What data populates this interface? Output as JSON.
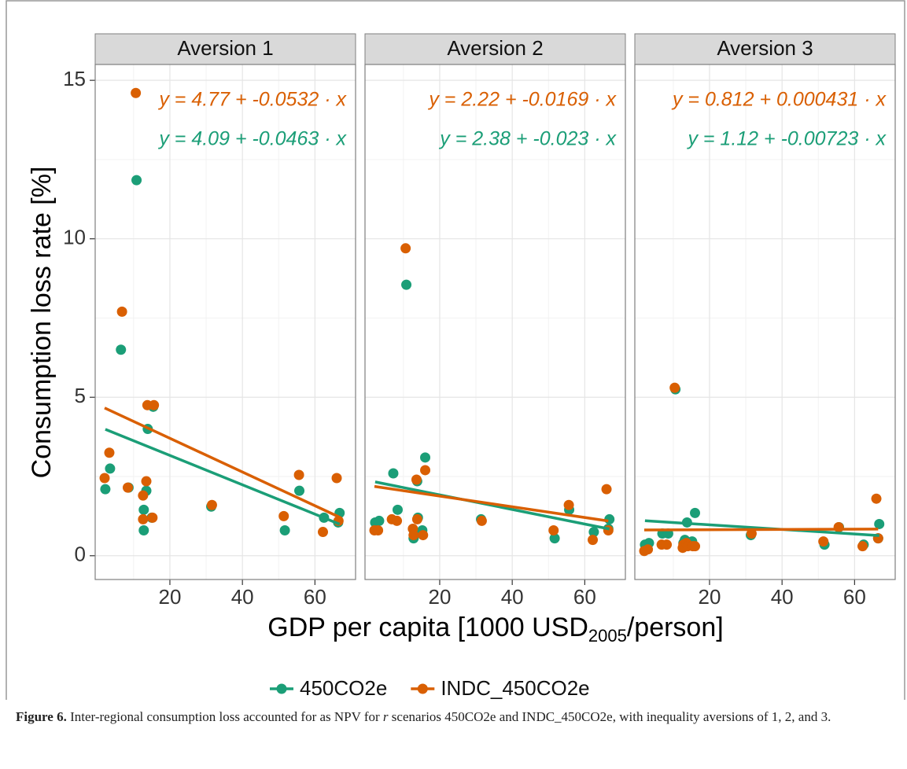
{
  "chart_data": [
    {
      "type": "scatter",
      "title": "Aversion 1",
      "ylabel": "Consumption loss rate [%]",
      "xlabel": [
        "GDP per capita [1000 USD",
        "2005",
        "/person]"
      ],
      "xlim": [
        -0.6,
        71.2
      ],
      "xticks": [
        20,
        40,
        60
      ],
      "ylim": [
        -0.75,
        15.5
      ],
      "yticks": [
        0,
        5,
        10,
        15
      ],
      "grid": true,
      "series": [
        {
          "name": "450CO2e",
          "color": "#1b9e77",
          "x": [
            2.2,
            3.5,
            6.5,
            8.6,
            10.8,
            12.8,
            12.8,
            13.5,
            13.9,
            15.0,
            15.4,
            31.4,
            51.7,
            55.7,
            62.5,
            66.4,
            66.8
          ],
          "values": [
            2.1,
            2.75,
            6.5,
            2.15,
            11.85,
            1.45,
            0.8,
            2.05,
            4.0,
            1.2,
            4.7,
            1.55,
            0.8,
            2.05,
            1.2,
            1.05,
            1.35
          ],
          "fit": {
            "intercept": 4.09,
            "slope": -0.0463
          },
          "annotation": "y = 4.09 + -0.0463 · x"
        },
        {
          "name": "INDC_450CO2e",
          "color": "#d95f02",
          "x": [
            2.0,
            3.3,
            6.8,
            8.4,
            10.6,
            12.6,
            12.6,
            13.5,
            13.8,
            15.2,
            15.6,
            31.6,
            51.4,
            55.6,
            62.2,
            66.0,
            66.5
          ],
          "values": [
            2.45,
            3.25,
            7.7,
            2.15,
            14.6,
            1.9,
            1.15,
            2.35,
            4.75,
            1.2,
            4.75,
            1.6,
            1.25,
            2.55,
            0.75,
            2.45,
            1.1
          ],
          "fit": {
            "intercept": 4.77,
            "slope": -0.0532
          },
          "annotation": "y = 4.77 + -0.0532 · x"
        }
      ]
    },
    {
      "type": "scatter",
      "title": "Aversion 2",
      "xlim": [
        -0.6,
        71.2
      ],
      "xticks": [
        20,
        40,
        60
      ],
      "ylim": [
        -0.75,
        15.5
      ],
      "yticks": [
        0,
        5,
        10,
        15
      ],
      "grid": true,
      "series": [
        {
          "name": "450CO2e",
          "color": "#1b9e77",
          "x": [
            2.2,
            3.3,
            7.2,
            8.4,
            10.8,
            12.8,
            13.0,
            13.8,
            14.0,
            15.2,
            16.0,
            31.4,
            51.7,
            55.7,
            62.5,
            66.8,
            66.5
          ],
          "values": [
            1.05,
            1.1,
            2.6,
            1.45,
            8.55,
            0.55,
            0.75,
            2.35,
            1.2,
            0.8,
            3.1,
            1.15,
            0.55,
            1.45,
            0.75,
            1.15,
            0.85
          ],
          "fit": {
            "intercept": 2.38,
            "slope": -0.023
          },
          "annotation": "y = 2.38 + -0.023 · x"
        },
        {
          "name": "INDC_450CO2e",
          "color": "#d95f02",
          "x": [
            2.0,
            3.0,
            6.8,
            8.2,
            10.6,
            12.6,
            12.8,
            13.6,
            13.8,
            15.4,
            16.0,
            31.6,
            51.4,
            55.6,
            62.2,
            66.0,
            66.5
          ],
          "values": [
            0.8,
            0.8,
            1.15,
            1.1,
            9.7,
            0.85,
            0.65,
            2.4,
            1.15,
            0.65,
            2.7,
            1.1,
            0.8,
            1.6,
            0.5,
            2.1,
            0.8
          ],
          "fit": {
            "intercept": 2.22,
            "slope": -0.0169
          },
          "annotation": "y = 2.22 + -0.0169 · x"
        }
      ]
    },
    {
      "type": "scatter",
      "title": "Aversion 3",
      "xlim": [
        -0.6,
        71.2
      ],
      "xticks": [
        20,
        40,
        60
      ],
      "ylim": [
        -0.75,
        15.5
      ],
      "yticks": [
        0,
        5,
        10,
        15
      ],
      "grid": true,
      "series": [
        {
          "name": "450CO2e",
          "color": "#1b9e77",
          "x": [
            2.2,
            3.3,
            7.0,
            8.6,
            10.6,
            12.8,
            13.2,
            13.8,
            14.0,
            15.2,
            16.0,
            31.4,
            51.7,
            55.7,
            62.5,
            66.8,
            66.5
          ],
          "values": [
            0.35,
            0.4,
            0.7,
            0.7,
            5.25,
            0.4,
            0.5,
            1.05,
            0.35,
            0.45,
            1.35,
            0.65,
            0.35,
            0.9,
            0.35,
            1.0,
            0.55
          ],
          "fit": {
            "intercept": 1.12,
            "slope": -0.00723
          },
          "annotation": "y = 1.12 + -0.00723 · x"
        },
        {
          "name": "INDC_450CO2e",
          "color": "#d95f02",
          "x": [
            2.0,
            3.0,
            6.8,
            8.2,
            10.4,
            12.6,
            12.8,
            13.6,
            14.0,
            15.4,
            16.0,
            31.6,
            51.4,
            55.6,
            62.2,
            66.0,
            66.5
          ],
          "values": [
            0.15,
            0.2,
            0.35,
            0.35,
            5.3,
            0.25,
            0.35,
            0.4,
            0.3,
            0.3,
            0.3,
            0.7,
            0.45,
            0.9,
            0.3,
            1.8,
            0.55
          ],
          "fit": {
            "intercept": 0.812,
            "slope": 0.000431
          },
          "annotation": "y = 0.812 + 0.000431 · x"
        }
      ]
    }
  ],
  "caption": [
    "Figure 6.",
    " Inter-regional consumption loss accounted for as NPV for ",
    "r",
    " scenarios 450CO2e and INDC_450CO2e, with inequality aversions of 1, 2, and 3."
  ]
}
